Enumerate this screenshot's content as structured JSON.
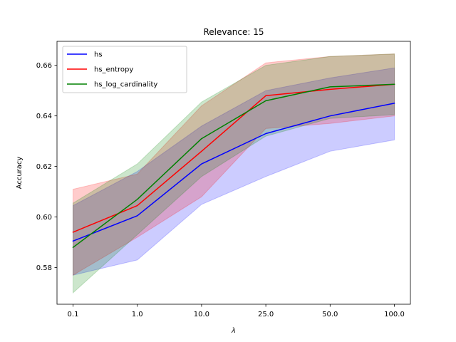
{
  "chart_data": {
    "type": "line",
    "title": "Relevance: 15",
    "xlabel": "λ",
    "ylabel": "Accuracy",
    "categories": [
      "0.1",
      "1.0",
      "10.0",
      "25.0",
      "50.0",
      "100.0"
    ],
    "ylim": [
      0.5655,
      0.6695
    ],
    "yticks": [
      0.58,
      0.6,
      0.62,
      0.64,
      0.66
    ],
    "ytick_labels": [
      "0.58",
      "0.60",
      "0.62",
      "0.64",
      "0.66"
    ],
    "grid": false,
    "legend_position": "upper-left",
    "series": [
      {
        "name": "hs",
        "color": "#0000ff",
        "values": [
          0.5905,
          0.6005,
          0.621,
          0.633,
          0.64,
          0.645
        ],
        "lower": [
          0.577,
          0.583,
          0.605,
          0.616,
          0.626,
          0.6305
        ],
        "upper": [
          0.6045,
          0.618,
          0.636,
          0.65,
          0.655,
          0.659
        ]
      },
      {
        "name": "hs_entropy",
        "color": "#ff0000",
        "values": [
          0.594,
          0.6045,
          0.626,
          0.648,
          0.6505,
          0.6525
        ],
        "lower": [
          0.577,
          0.592,
          0.608,
          0.635,
          0.637,
          0.64
        ],
        "upper": [
          0.611,
          0.617,
          0.644,
          0.661,
          0.6635,
          0.6645
        ]
      },
      {
        "name": "hs_log_cardinality",
        "color": "#008000",
        "values": [
          0.588,
          0.607,
          0.631,
          0.646,
          0.6515,
          0.6525
        ],
        "lower": [
          0.57,
          0.593,
          0.616,
          0.632,
          0.639,
          0.6405
        ],
        "upper": [
          0.6055,
          0.621,
          0.6455,
          0.66,
          0.6635,
          0.6645
        ]
      }
    ]
  }
}
